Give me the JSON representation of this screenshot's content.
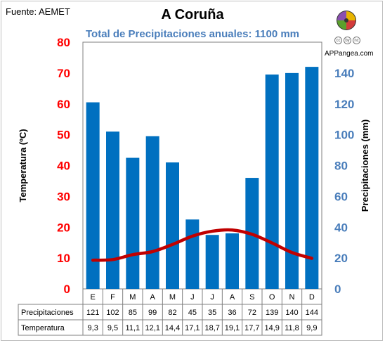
{
  "header": {
    "source": "Fuente: AEMET",
    "title": "A Coruña",
    "subtitle": "Total de Precipitaciones anuales: 1100 mm",
    "brand": "APPangea.com",
    "cc_badges": [
      "cc",
      "by",
      "nc"
    ]
  },
  "colors": {
    "bars": "#0070c0",
    "temperature_line": "#c00000",
    "left_axis_labels": "#ff0000",
    "right_axis_labels": "#4a7ebb",
    "subtitle": "#4a7ebb"
  },
  "chart_data": {
    "type": "bar+line",
    "categories": [
      "E",
      "F",
      "M",
      "A",
      "M",
      "J",
      "J",
      "A",
      "S",
      "O",
      "N",
      "D"
    ],
    "series": [
      {
        "name": "Precipitaciones",
        "type": "bar",
        "axis": "right",
        "values": [
          121,
          102,
          85,
          99,
          82,
          45,
          35,
          36,
          72,
          139,
          140,
          144
        ]
      },
      {
        "name": "Temperatura",
        "type": "line",
        "axis": "left",
        "values": [
          9.3,
          9.5,
          11.1,
          12.1,
          14.4,
          17.1,
          18.7,
          19.1,
          17.7,
          14.9,
          11.8,
          9.9
        ]
      }
    ],
    "y_left": {
      "label": "Temperatura (ºC)",
      "min": 0,
      "max": 80,
      "ticks": [
        "0",
        "10",
        "20",
        "30",
        "40",
        "50",
        "60",
        "70",
        "80"
      ]
    },
    "y_right": {
      "label": "Precipitaciones (mm)",
      "min": 0,
      "max": 160,
      "ticks": [
        "0",
        "20",
        "40",
        "60",
        "80",
        "100",
        "120",
        "140"
      ]
    },
    "grid": false,
    "table": {
      "rows": [
        {
          "label": "Precipitaciones",
          "values": [
            "121",
            "102",
            "85",
            "99",
            "82",
            "45",
            "35",
            "36",
            "72",
            "139",
            "140",
            "144"
          ]
        },
        {
          "label": "Temperatura",
          "values": [
            "9,3",
            "9,5",
            "11,1",
            "12,1",
            "14,4",
            "17,1",
            "18,7",
            "19,1",
            "17,7",
            "14,9",
            "11,8",
            "9,9"
          ]
        }
      ]
    }
  }
}
